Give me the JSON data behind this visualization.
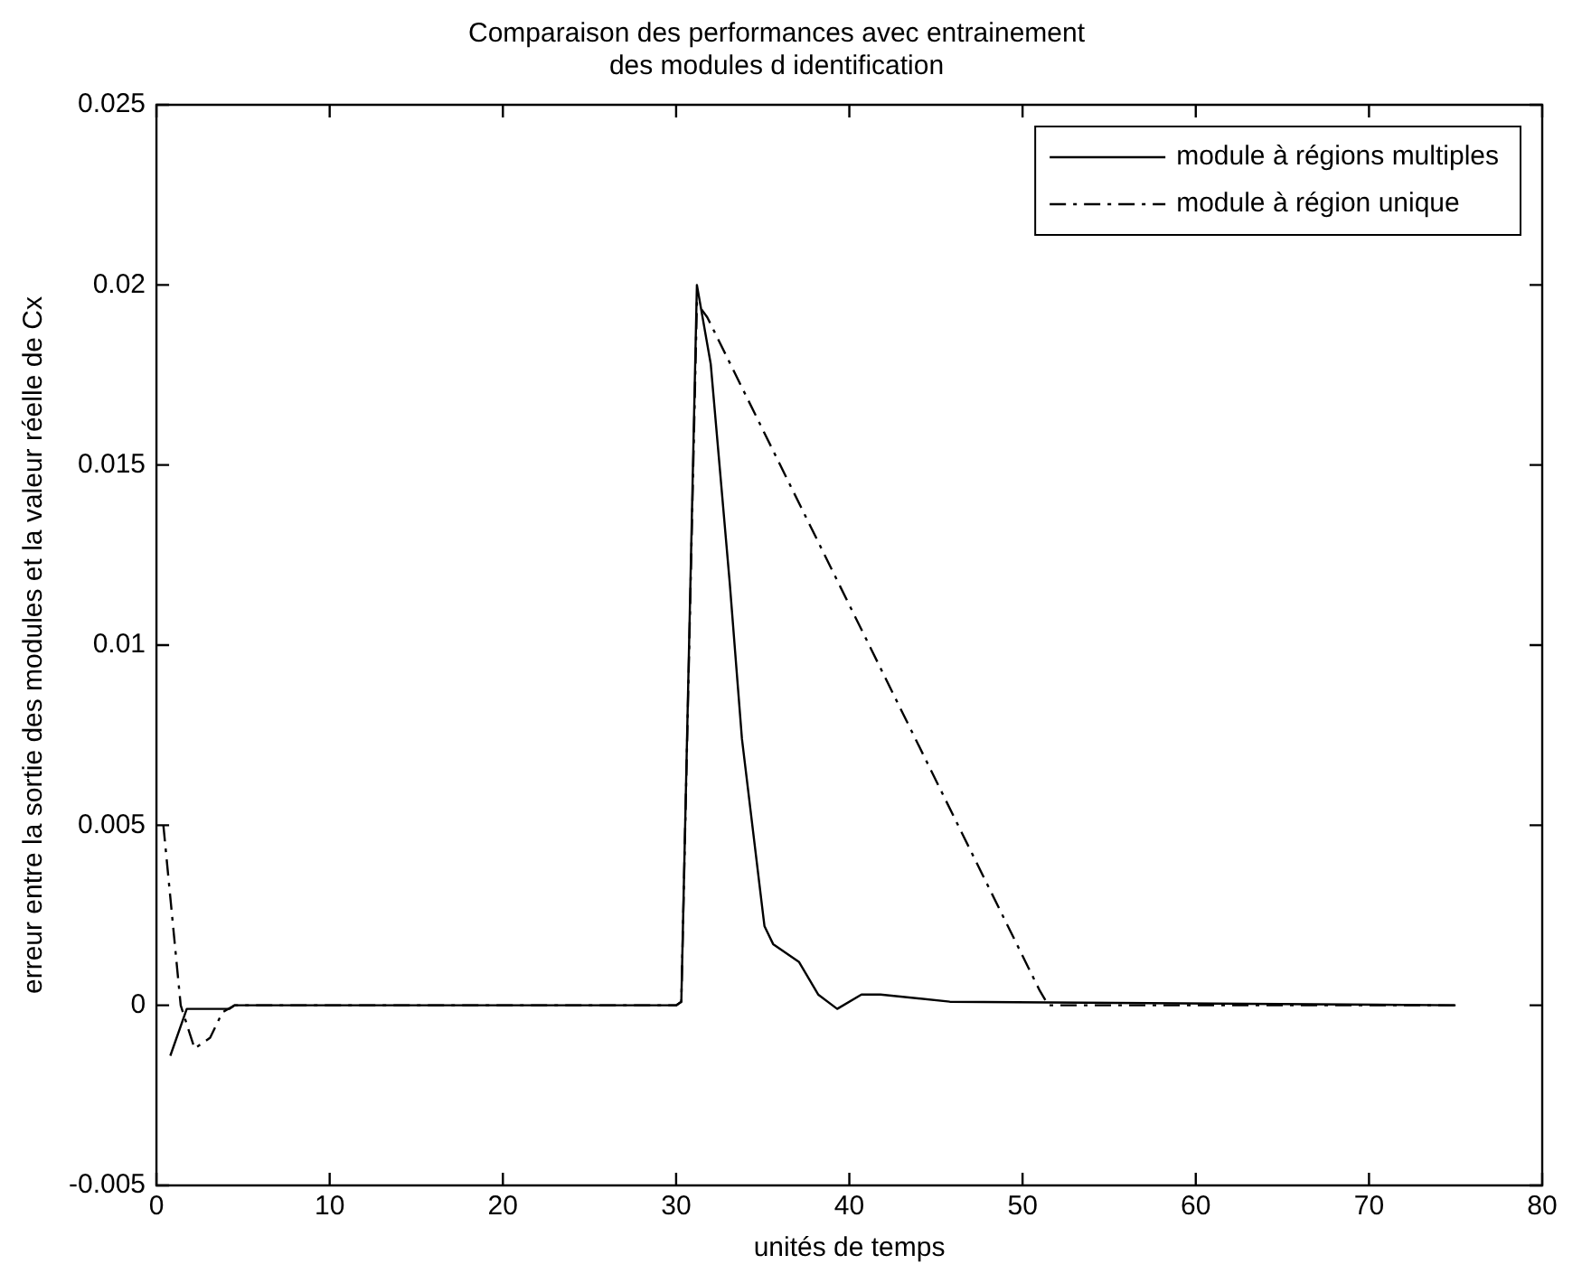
{
  "chart_data": {
    "type": "line",
    "title": "Comparaison des performances avec entrainement\ndes modules d identification",
    "xlabel": "unités de temps",
    "ylabel": "erreur entre la sortie des modules et la valeur réelle de Cx",
    "xlim": [
      0,
      80
    ],
    "xticks": [
      0,
      10,
      20,
      30,
      40,
      50,
      60,
      70,
      80
    ],
    "ylim": [
      -0.005,
      0.025
    ],
    "yticks": [
      -0.005,
      0,
      0.005,
      0.01,
      0.015,
      0.02,
      0.025
    ],
    "grid": false,
    "legend": "top right",
    "series": [
      {
        "name": "module à régions multiples",
        "color": "#000000",
        "line_style": "solid",
        "x": [
          0.8,
          1.75,
          4.2,
          4.5,
          8.4,
          8.5,
          30,
          30.3,
          31.2,
          32.0,
          33.1,
          33.8,
          35.1,
          35.6,
          37.1,
          38.2,
          39.3,
          40.7,
          41.8,
          45.8,
          75
        ],
        "values": [
          -0.0014,
          -0.0001,
          -0.0001,
          0,
          0,
          0,
          0,
          0.0001,
          0.02,
          0.0178,
          0.0117,
          0.0074,
          0.0022,
          0.0017,
          0.0012,
          0.0003,
          -0.0001,
          0.0003,
          0.0003,
          0.0001,
          0
        ]
      },
      {
        "name": "module à région unique",
        "color": "#000000",
        "line_style": "dashed",
        "x": [
          0.4,
          1.4,
          2.2,
          3.1,
          3.8,
          4.5,
          30,
          30.3,
          31.2,
          31.8,
          51.0,
          51.5,
          75
        ],
        "values": [
          0.005,
          0,
          -0.0012,
          -0.0009,
          -0.0002,
          0,
          0,
          0.0001,
          0.0195,
          0.0191,
          0.0004,
          0,
          0
        ]
      }
    ]
  }
}
